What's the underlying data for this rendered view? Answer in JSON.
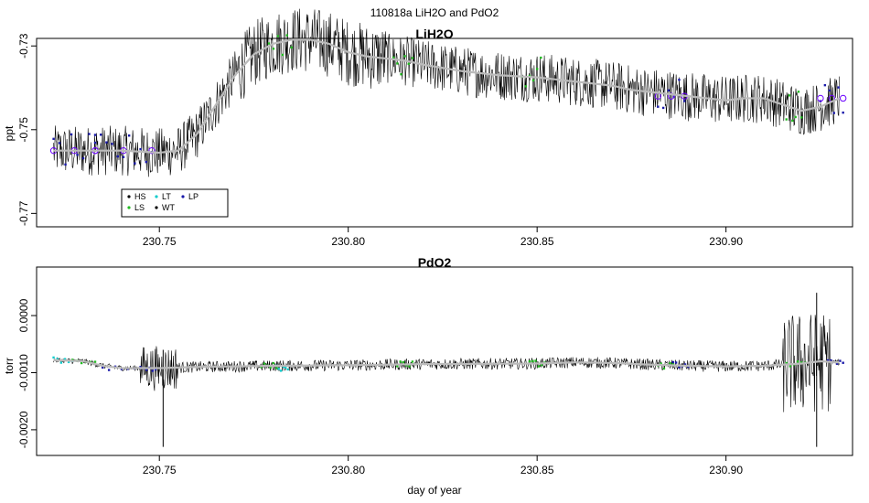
{
  "figure": {
    "title": "110818a   LiH2O and PdO2",
    "xlabel": "day of year"
  },
  "colors": {
    "HS": "#000000",
    "LS": "#22bb22",
    "LT": "#11cccc",
    "WT": "#000000",
    "LP": "#1a1aaa",
    "smooth": "#bbbbbb",
    "raw": "#000000",
    "marker_ring": "#6a00ff"
  },
  "chart_data": [
    {
      "type": "line",
      "title": "LiH2O",
      "ylabel": "ppt",
      "xlim": [
        230.7175,
        230.9335
      ],
      "ylim": [
        -0.7732,
        -0.7282
      ],
      "x_ticks": [
        230.75,
        230.8,
        230.85,
        230.9
      ],
      "x_tick_labels": [
        "230.75",
        "230.80",
        "230.85",
        "230.90"
      ],
      "y_ticks": [
        -0.77,
        -0.75,
        -0.73
      ],
      "y_tick_labels": [
        "-0.77",
        "-0.75",
        "-0.73"
      ],
      "legend": {
        "position": "bottom-left",
        "entries": [
          {
            "label": "HS",
            "color_key": "HS"
          },
          {
            "label": "LT",
            "color_key": "LT"
          },
          {
            "label": "LP",
            "color_key": "LP"
          },
          {
            "label": "LS",
            "color_key": "LS"
          },
          {
            "label": "WT",
            "color_key": "WT"
          }
        ]
      },
      "smooth_series": {
        "x": [
          230.722,
          230.73,
          230.74,
          230.75,
          230.755,
          230.76,
          230.765,
          230.77,
          230.775,
          230.78,
          230.785,
          230.79,
          230.795,
          230.8,
          230.805,
          230.81,
          230.815,
          230.82,
          230.83,
          230.84,
          230.85,
          230.86,
          230.87,
          230.875,
          230.88,
          230.885,
          230.89,
          230.895,
          230.9,
          230.905,
          230.91,
          230.915,
          230.92,
          230.925,
          230.93
        ],
        "y": [
          -0.755,
          -0.755,
          -0.755,
          -0.7555,
          -0.755,
          -0.751,
          -0.744,
          -0.737,
          -0.732,
          -0.7295,
          -0.7285,
          -0.7285,
          -0.7295,
          -0.7315,
          -0.7325,
          -0.733,
          -0.7335,
          -0.7345,
          -0.736,
          -0.737,
          -0.7375,
          -0.7385,
          -0.7395,
          -0.7405,
          -0.741,
          -0.7415,
          -0.742,
          -0.7425,
          -0.743,
          -0.7425,
          -0.7425,
          -0.744,
          -0.7455,
          -0.7445,
          -0.7425
        ]
      },
      "noise_amplitude": [
        {
          "x": [
            230.722,
            230.77
          ],
          "amplitude": 0.006
        },
        {
          "x": [
            230.77,
            230.81
          ],
          "amplitude": 0.008
        },
        {
          "x": [
            230.81,
            230.9305
          ],
          "amplitude": 0.006
        }
      ],
      "marker_groups": [
        {
          "x": [
            230.722,
            230.733
          ],
          "y": -0.755,
          "color_key": "LP"
        },
        {
          "x": [
            230.733,
            230.748
          ],
          "y": -0.755,
          "color_key": "LP"
        },
        {
          "x": [
            230.779,
            230.785
          ],
          "y": -0.729,
          "color_key": "LS"
        },
        {
          "x": [
            230.812,
            230.817
          ],
          "y": -0.7335,
          "color_key": "LS"
        },
        {
          "x": [
            230.846,
            230.851
          ],
          "y": -0.7365,
          "color_key": "LS"
        },
        {
          "x": [
            230.882,
            230.889
          ],
          "y": -0.742,
          "color_key": "LP"
        },
        {
          "x": [
            230.916,
            230.92
          ],
          "y": -0.7445,
          "color_key": "LS"
        },
        {
          "x": [
            230.925,
            230.931
          ],
          "y": -0.7425,
          "color_key": "LP"
        }
      ]
    },
    {
      "type": "line",
      "title": "PdO2",
      "ylabel": "torr",
      "xlim": [
        230.7175,
        230.9335
      ],
      "ylim": [
        -0.00245,
        0.00085
      ],
      "x_ticks": [
        230.75,
        230.8,
        230.85,
        230.9
      ],
      "x_tick_labels": [
        "230.75",
        "230.80",
        "230.85",
        "230.90"
      ],
      "y_ticks": [
        -0.002,
        -0.001,
        0.0
      ],
      "y_tick_labels": [
        "-0.0020",
        "-0.0010",
        "0.0000"
      ],
      "smooth_series": {
        "x": [
          230.722,
          230.73,
          230.735,
          230.74,
          230.75,
          230.76,
          230.78,
          230.8,
          230.82,
          230.85,
          230.86,
          230.87,
          230.88,
          230.89,
          230.9,
          230.91,
          230.92,
          230.925,
          230.93
        ],
        "y": [
          -0.00078,
          -0.0008,
          -0.00088,
          -0.00092,
          -0.00092,
          -0.0009,
          -0.00088,
          -0.00087,
          -0.00085,
          -0.00084,
          -0.00082,
          -0.00083,
          -0.00086,
          -0.00088,
          -0.00089,
          -0.00088,
          -0.00084,
          -0.0008,
          -0.00082
        ]
      },
      "noise_amplitude": [
        {
          "x": [
            230.722,
            230.745
          ],
          "amplitude": 5e-05
        },
        {
          "x": [
            230.745,
            230.755
          ],
          "amplitude": 0.0004
        },
        {
          "x": [
            230.755,
            230.915
          ],
          "amplitude": 0.0001
        },
        {
          "x": [
            230.915,
            230.928
          ],
          "amplitude": 0.0009
        },
        {
          "x": [
            230.928,
            230.9305
          ],
          "amplitude": 5e-05
        }
      ],
      "spikes": [
        {
          "x": 230.751,
          "y_min": -0.0023,
          "y_max": -0.0006
        },
        {
          "x": 230.924,
          "y_min": -0.0023,
          "y_max": 0.0004
        }
      ],
      "marker_groups": [
        {
          "x": [
            230.722,
            230.727
          ],
          "y": -0.00078,
          "color_key": "LT"
        },
        {
          "x": [
            230.727,
            230.733
          ],
          "y": -0.0008,
          "color_key": "LS"
        },
        {
          "x": [
            230.735,
            230.745
          ],
          "y": -0.00092,
          "color_key": "LP"
        },
        {
          "x": [
            230.745,
            230.749
          ],
          "y": -0.00092,
          "color_key": "LP"
        },
        {
          "x": [
            230.777,
            230.781
          ],
          "y": -0.00088,
          "color_key": "LS"
        },
        {
          "x": [
            230.781,
            230.784
          ],
          "y": -0.00092,
          "color_key": "LT"
        },
        {
          "x": [
            230.813,
            230.817
          ],
          "y": -0.00085,
          "color_key": "LS"
        },
        {
          "x": [
            230.848,
            230.852
          ],
          "y": -0.00084,
          "color_key": "LS"
        },
        {
          "x": [
            230.882,
            230.886
          ],
          "y": -0.00088,
          "color_key": "LS"
        },
        {
          "x": [
            230.886,
            230.89
          ],
          "y": -0.00086,
          "color_key": "LP"
        },
        {
          "x": [
            230.916,
            230.921
          ],
          "y": -0.00085,
          "color_key": "LS"
        },
        {
          "x": [
            230.927,
            230.931
          ],
          "y": -0.00083,
          "color_key": "LP"
        }
      ]
    }
  ]
}
